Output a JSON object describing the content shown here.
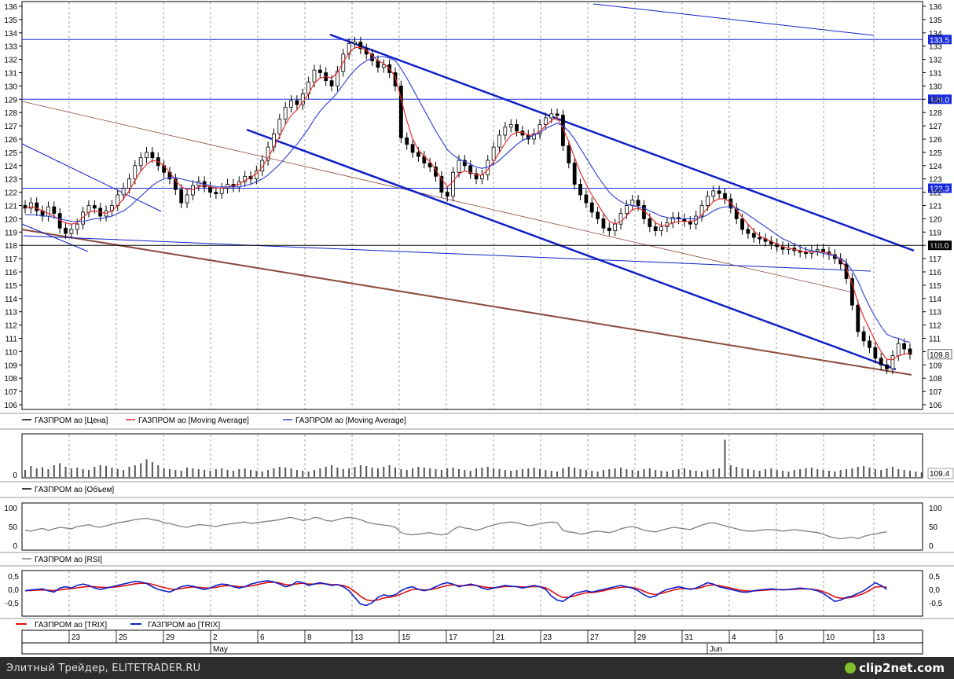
{
  "chart_data": [
    {
      "type": "candlestick",
      "title": "",
      "ylim": [
        105,
        136
      ],
      "y_ticks": [
        "106",
        "107",
        "108",
        "109",
        "110",
        "111",
        "112",
        "113",
        "114",
        "115",
        "116",
        "117",
        "118",
        "119",
        "120",
        "121",
        "122",
        "123",
        "124",
        "125",
        "126",
        "127",
        "128",
        "129",
        "130",
        "131",
        "132",
        "133",
        "134",
        "135",
        "136"
      ],
      "price_levels": [
        "133.5",
        "129.0",
        "122.3",
        "118.0"
      ],
      "last_price": "109.8",
      "close_series": [
        120.8,
        121.2,
        120.6,
        120.2,
        120.9,
        120.4,
        119.3,
        118.9,
        119.2,
        119.6,
        120.5,
        121.0,
        120.8,
        120.2,
        120.6,
        121.0,
        121.8,
        122.3,
        123.0,
        124.0,
        124.6,
        125.0,
        124.6,
        124.0,
        123.5,
        123.0,
        122.2,
        121.2,
        121.8,
        122.5,
        122.8,
        122.4,
        122.0,
        121.9,
        122.3,
        122.6,
        122.4,
        122.8,
        123.2,
        123.0,
        123.6,
        124.4,
        125.4,
        126.4,
        127.5,
        128.4,
        128.9,
        128.6,
        129.4,
        130.3,
        131.2,
        131.0,
        130.4,
        130.0,
        131.1,
        132.4,
        133.2,
        133.3,
        132.8,
        132.4,
        131.9,
        131.4,
        131.6,
        131.0,
        130.0,
        126.1,
        125.6,
        125.0,
        124.7,
        124.2,
        123.9,
        123.2,
        122.0,
        121.7,
        123.5,
        124.4,
        124.0,
        123.4,
        123.0,
        123.3,
        124.4,
        125.4,
        126.3,
        126.9,
        127.1,
        126.6,
        126.3,
        126.0,
        126.4,
        127.1,
        127.6,
        127.9,
        127.8,
        125.5,
        124.2,
        122.6,
        121.8,
        121.2,
        120.5,
        120.0,
        119.3,
        119.1,
        119.6,
        120.4,
        121.0,
        121.4,
        121.0,
        120.0,
        119.4,
        119.1,
        119.4,
        119.7,
        120.1,
        120.0,
        119.8,
        119.6,
        120.2,
        121.0,
        121.7,
        122.1,
        121.9,
        121.5,
        120.8,
        120.0,
        119.2,
        118.9,
        118.6,
        118.5,
        118.3,
        118.1,
        117.9,
        117.7,
        117.8,
        117.6,
        117.5,
        117.4,
        117.6,
        117.7,
        117.5,
        117.3,
        117.0,
        116.6,
        115.5,
        113.5,
        111.5,
        110.8,
        110.3,
        109.5,
        109.0,
        108.7,
        109.7,
        110.6,
        110.2,
        109.8
      ],
      "moving_average_short": [
        120.8,
        120.9,
        120.8,
        120.6,
        120.4,
        120.2,
        119.9,
        119.7,
        119.6,
        119.7,
        120.1,
        120.5,
        120.6,
        120.5,
        120.4,
        120.6,
        121.0,
        121.5,
        122.1,
        122.9,
        123.6,
        124.1,
        124.4,
        124.3,
        124.0,
        123.5,
        122.9,
        122.4,
        122.2,
        122.2,
        122.4,
        122.5,
        122.4,
        122.3,
        122.3,
        122.4,
        122.5,
        122.6,
        122.9,
        123.1,
        123.4,
        123.9,
        124.6,
        125.4,
        126.2,
        127.1,
        127.8,
        128.2,
        128.8,
        129.4,
        130.2,
        130.6,
        130.7,
        130.6,
        131.0,
        131.8,
        132.5,
        132.9,
        132.9,
        132.7,
        132.3,
        131.9,
        131.7,
        131.3,
        130.7,
        129.0,
        127.4,
        126.0,
        125.2,
        124.7,
        124.3,
        123.7,
        123.0,
        122.4,
        122.8,
        123.4,
        123.6,
        123.5,
        123.3,
        123.3,
        123.7,
        124.3,
        125.0,
        125.7,
        126.3,
        126.5,
        126.5,
        126.3,
        126.3,
        126.6,
        127.0,
        127.4,
        127.6,
        126.8,
        125.8,
        124.6,
        123.5,
        122.6,
        121.8,
        121.1,
        120.4,
        119.8,
        119.6,
        119.8,
        120.2,
        120.7,
        120.8,
        120.6,
        120.2,
        119.7,
        119.5,
        119.5,
        119.7,
        119.8,
        119.8,
        119.8,
        119.9,
        120.3,
        120.8,
        121.3,
        121.5,
        121.5,
        121.2,
        120.7,
        120.1,
        119.6,
        119.1,
        118.7,
        118.5,
        118.3,
        118.1,
        117.9,
        117.8,
        117.7,
        117.6,
        117.5,
        117.5,
        117.5,
        117.5,
        117.4,
        117.2,
        116.9,
        116.3,
        115.1,
        113.7,
        112.6,
        111.7,
        110.8,
        110.0,
        109.4,
        109.4,
        109.7,
        109.8,
        109.9
      ],
      "moving_average_long": [
        120.3,
        120.3,
        120.3,
        120.2,
        120.2,
        120.1,
        120.0,
        119.9,
        119.8,
        119.8,
        119.8,
        119.9,
        120.0,
        120.0,
        120.1,
        120.2,
        120.4,
        120.6,
        120.9,
        121.3,
        121.7,
        122.1,
        122.5,
        122.8,
        123.0,
        123.1,
        123.1,
        123.0,
        122.9,
        122.8,
        122.7,
        122.6,
        122.5,
        122.4,
        122.4,
        122.4,
        122.4,
        122.4,
        122.5,
        122.6,
        122.8,
        123.0,
        123.3,
        123.7,
        124.1,
        124.6,
        125.1,
        125.6,
        126.2,
        126.8,
        127.5,
        128.1,
        128.6,
        129.0,
        129.5,
        130.1,
        130.7,
        131.2,
        131.6,
        131.9,
        132.1,
        132.2,
        132.2,
        132.1,
        131.9,
        131.3,
        130.6,
        129.8,
        129.0,
        128.2,
        127.4,
        126.6,
        125.9,
        125.2,
        124.8,
        124.5,
        124.3,
        124.1,
        123.9,
        123.8,
        123.9,
        124.1,
        124.4,
        124.8,
        125.2,
        125.6,
        125.9,
        126.1,
        126.3,
        126.5,
        126.8,
        127.0,
        127.2,
        127.0,
        126.6,
        126.0,
        125.3,
        124.6,
        123.9,
        123.2,
        122.6,
        122.0,
        121.6,
        121.3,
        121.1,
        121.0,
        120.9,
        120.8,
        120.6,
        120.4,
        120.2,
        120.1,
        120.0,
        120.0,
        120.0,
        120.0,
        120.0,
        120.1,
        120.3,
        120.6,
        120.8,
        120.9,
        120.9,
        120.8,
        120.6,
        120.3,
        120.0,
        119.7,
        119.4,
        119.1,
        118.8,
        118.5,
        118.3,
        118.1,
        117.9,
        117.7,
        117.6,
        117.5,
        117.4,
        117.3,
        117.2,
        117.0,
        116.7,
        116.1,
        115.3,
        114.3,
        113.4,
        112.6,
        111.9,
        111.3,
        111.1,
        111.0,
        110.8,
        110.7
      ],
      "legend": [
        "ГАЗПРОМ ао [Цена]",
        "ГАЗПРОМ ао [Moving Average]",
        "ГАЗПРОМ ао [Moving Average]"
      ]
    },
    {
      "type": "bar",
      "title": "",
      "y_ticks": [
        "0"
      ],
      "last_value": "109.4",
      "volume_values": [
        18,
        28,
        22,
        25,
        20,
        30,
        35,
        26,
        22,
        24,
        20,
        18,
        26,
        30,
        28,
        24,
        20,
        18,
        26,
        30,
        35,
        45,
        38,
        30,
        22,
        20,
        18,
        16,
        24,
        22,
        20,
        18,
        16,
        20,
        22,
        18,
        16,
        20,
        22,
        18,
        16,
        14,
        18,
        22,
        26,
        24,
        22,
        18,
        16,
        14,
        18,
        22,
        26,
        30,
        24,
        20,
        22,
        26,
        30,
        28,
        24,
        22,
        26,
        30,
        24,
        20,
        18,
        22,
        26,
        24,
        22,
        20,
        18,
        22,
        24,
        20,
        18,
        16,
        22,
        24,
        26,
        22,
        20,
        18,
        16,
        18,
        20,
        22,
        24,
        20,
        18,
        16,
        14,
        22,
        26,
        24,
        20,
        18,
        16,
        14,
        18,
        20,
        22,
        24,
        20,
        18,
        16,
        20,
        22,
        18,
        16,
        14,
        18,
        20,
        22,
        18,
        16,
        14,
        18,
        20,
        22,
        95,
        30,
        26,
        22,
        20,
        18,
        16,
        20,
        22,
        18,
        16,
        14,
        18,
        20,
        22,
        24,
        20,
        18,
        16,
        14,
        18,
        20,
        22,
        26,
        28,
        24,
        20,
        18,
        22,
        26,
        20,
        18,
        16,
        14,
        12
      ],
      "legend": [
        "ГАЗПРОМ ао [Объем]"
      ]
    },
    {
      "type": "line",
      "title": "",
      "y_ticks": [
        "100",
        "50",
        "0"
      ],
      "ylim": [
        -10,
        110
      ],
      "rsi_values": [
        40,
        38,
        42,
        45,
        40,
        44,
        48,
        46,
        44,
        50,
        52,
        55,
        50,
        48,
        52,
        56,
        60,
        62,
        65,
        68,
        70,
        72,
        68,
        66,
        60,
        58,
        54,
        50,
        48,
        52,
        55,
        54,
        52,
        50,
        54,
        56,
        58,
        60,
        62,
        58,
        60,
        62,
        64,
        66,
        68,
        72,
        74,
        70,
        66,
        68,
        74,
        72,
        66,
        64,
        68,
        72,
        74,
        72,
        68,
        62,
        58,
        56,
        54,
        52,
        48,
        34,
        30,
        28,
        30,
        32,
        34,
        30,
        28,
        30,
        42,
        50,
        46,
        44,
        40,
        44,
        50,
        54,
        58,
        60,
        62,
        60,
        56,
        52,
        54,
        58,
        60,
        62,
        60,
        40,
        36,
        34,
        30,
        32,
        36,
        38,
        36,
        34,
        38,
        44,
        48,
        50,
        46,
        40,
        38,
        36,
        40,
        44,
        48,
        46,
        44,
        42,
        48,
        54,
        58,
        60,
        56,
        52,
        48,
        44,
        40,
        38,
        38,
        40,
        42,
        42,
        40,
        38,
        40,
        42,
        40,
        38,
        36,
        34,
        30,
        24,
        20,
        18,
        20,
        22,
        18,
        24,
        28,
        30,
        34,
        36
      ],
      "legend": [
        "ГАЗПРОМ ао [RSI]"
      ]
    },
    {
      "type": "line",
      "title": "",
      "y_ticks": [
        "0,5",
        "0,0",
        "-0,5"
      ],
      "ylim": [
        -0.8,
        0.8
      ],
      "trix_fast": [
        -0.05,
        -0.02,
        0.0,
        0.02,
        -0.05,
        -0.1,
        0.05,
        0.1,
        0.05,
        0.15,
        0.2,
        0.15,
        0.05,
        0.0,
        0.05,
        0.1,
        0.15,
        0.2,
        0.25,
        0.3,
        0.28,
        0.22,
        0.1,
        0.0,
        -0.05,
        -0.1,
        0.0,
        0.1,
        0.15,
        0.12,
        0.05,
        0.0,
        0.05,
        0.15,
        0.2,
        0.18,
        0.1,
        0.05,
        0.1,
        0.2,
        0.25,
        0.3,
        0.32,
        0.28,
        0.2,
        0.1,
        0.15,
        0.3,
        0.25,
        0.15,
        0.2,
        0.25,
        0.2,
        0.15,
        0.18,
        0.1,
        -0.05,
        -0.3,
        -0.55,
        -0.6,
        -0.5,
        -0.3,
        -0.2,
        -0.25,
        -0.2,
        -0.05,
        0.05,
        0.1,
        0.0,
        -0.05,
        0.0,
        0.1,
        0.2,
        0.25,
        0.2,
        0.1,
        0.15,
        0.2,
        0.15,
        0.05,
        0.0,
        0.05,
        0.1,
        0.15,
        0.12,
        0.1,
        0.05,
        0.1,
        0.15,
        0.1,
        0.0,
        -0.25,
        -0.4,
        -0.45,
        -0.3,
        -0.15,
        -0.1,
        -0.05,
        -0.1,
        -0.05,
        0.0,
        0.05,
        0.1,
        0.15,
        0.1,
        0.05,
        -0.05,
        -0.2,
        -0.3,
        -0.25,
        -0.1,
        0.0,
        0.05,
        0.1,
        0.05,
        0.0,
        0.05,
        0.15,
        0.25,
        0.2,
        0.1,
        0.05,
        0.0,
        -0.05,
        -0.1,
        -0.1,
        -0.05,
        -0.02,
        0.0,
        0.02,
        0.0,
        -0.02,
        0.0,
        0.02,
        0.05,
        0.03,
        0.0,
        -0.05,
        -0.15,
        -0.3,
        -0.45,
        -0.4,
        -0.3,
        -0.25,
        -0.15,
        -0.05,
        0.1,
        0.25,
        0.15,
        0.0
      ],
      "trix_slow": [
        -0.05,
        -0.04,
        -0.03,
        -0.02,
        -0.03,
        -0.04,
        -0.02,
        0.01,
        0.03,
        0.06,
        0.09,
        0.11,
        0.1,
        0.08,
        0.07,
        0.08,
        0.1,
        0.13,
        0.17,
        0.21,
        0.23,
        0.23,
        0.19,
        0.13,
        0.07,
        0.02,
        0.0,
        0.03,
        0.07,
        0.09,
        0.08,
        0.06,
        0.05,
        0.08,
        0.12,
        0.14,
        0.13,
        0.1,
        0.1,
        0.13,
        0.17,
        0.22,
        0.26,
        0.27,
        0.24,
        0.18,
        0.17,
        0.21,
        0.23,
        0.2,
        0.2,
        0.22,
        0.21,
        0.18,
        0.18,
        0.14,
        0.07,
        -0.08,
        -0.26,
        -0.39,
        -0.43,
        -0.39,
        -0.32,
        -0.29,
        -0.25,
        -0.17,
        -0.08,
        0.0,
        0.0,
        -0.02,
        -0.01,
        0.03,
        0.09,
        0.15,
        0.17,
        0.14,
        0.14,
        0.16,
        0.15,
        0.11,
        0.07,
        0.06,
        0.08,
        0.11,
        0.11,
        0.11,
        0.09,
        0.09,
        0.11,
        0.1,
        0.06,
        -0.06,
        -0.2,
        -0.3,
        -0.3,
        -0.24,
        -0.18,
        -0.13,
        -0.12,
        -0.09,
        -0.05,
        0.0,
        0.04,
        0.08,
        0.09,
        0.07,
        0.02,
        -0.07,
        -0.16,
        -0.19,
        -0.15,
        -0.09,
        -0.03,
        0.02,
        0.03,
        0.02,
        0.03,
        0.08,
        0.15,
        0.17,
        0.14,
        0.1,
        0.05,
        0.0,
        -0.04,
        -0.06,
        -0.06,
        -0.04,
        -0.03,
        -0.01,
        -0.01,
        -0.01,
        -0.01,
        0.0,
        0.02,
        0.02,
        0.01,
        -0.02,
        -0.08,
        -0.17,
        -0.28,
        -0.33,
        -0.32,
        -0.29,
        -0.23,
        -0.15,
        -0.04,
        0.09,
        0.11,
        0.07
      ],
      "legend": [
        "ГАЗПРОМ ао [TRIX]",
        "ГАЗПРОМ ао [TRIX]"
      ]
    }
  ],
  "time_axis": {
    "day_labels": [
      "23",
      "25",
      "29",
      "2",
      "6",
      "8",
      "13",
      "15",
      "17",
      "21",
      "23",
      "27",
      "29",
      "31",
      "4",
      "6",
      "10",
      "13"
    ],
    "month_labels": [
      "May",
      "Jun"
    ]
  },
  "colors": {
    "price": "#000000",
    "ma_short": "#e8302c",
    "ma_long": "#3a4bd6",
    "channel": "#1020c8",
    "trend_brown": "#8b4a3c",
    "level_line": "#1a2be0",
    "rsi": "#808080",
    "trix_fast": "#1020c8",
    "trix_slow": "#e01010"
  },
  "footer": {
    "caption": "Элитный Трейдер, ELITETRADER.RU",
    "logo": "clip2net.com"
  }
}
